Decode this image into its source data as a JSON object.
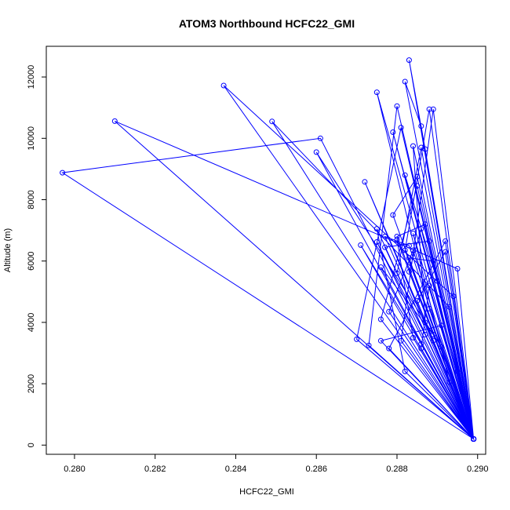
{
  "chart_data": {
    "type": "line",
    "title": "ATOM3 Northbound HCFC22_GMI",
    "xlabel": "HCFC22_GMI",
    "ylabel": "Altitude (m)",
    "xlim": [
      0.2793,
      0.2902
    ],
    "ylim": [
      -300,
      13000
    ],
    "x_ticks": [
      {
        "value": 0.28,
        "label": "0.280"
      },
      {
        "value": 0.282,
        "label": "0.282"
      },
      {
        "value": 0.284,
        "label": "0.284"
      },
      {
        "value": 0.286,
        "label": "0.286"
      },
      {
        "value": 0.288,
        "label": "0.288"
      },
      {
        "value": 0.29,
        "label": "0.290"
      }
    ],
    "y_ticks": [
      {
        "value": 0,
        "label": "0"
      },
      {
        "value": 2000,
        "label": "2000"
      },
      {
        "value": 4000,
        "label": "4000"
      },
      {
        "value": 6000,
        "label": "6000"
      },
      {
        "value": 8000,
        "label": "8000"
      },
      {
        "value": 10000,
        "label": "10000"
      },
      {
        "value": 12000,
        "label": "12000"
      }
    ],
    "grid": false,
    "series": [
      {
        "color": "#0000ff",
        "marker": "open-circle",
        "x": [
          0.2899,
          0.2797,
          0.2861,
          0.2899,
          0.281,
          0.2895,
          0.2899,
          0.2837,
          0.2894,
          0.2899,
          0.2849,
          0.2893,
          0.2899,
          0.286,
          0.2891,
          0.2899,
          0.2872,
          0.2889,
          0.2899,
          0.2875,
          0.2887,
          0.2899,
          0.2871,
          0.2886,
          0.2899,
          0.2875,
          0.2882,
          0.2899,
          0.288,
          0.2884,
          0.2899,
          0.2877,
          0.2883,
          0.2899,
          0.2876,
          0.2885,
          0.2899,
          0.287,
          0.2881,
          0.2899,
          0.2873,
          0.288,
          0.2899,
          0.2882,
          0.2886,
          0.2899,
          0.2877,
          0.2888,
          0.2899,
          0.2883,
          0.2887,
          0.2899,
          0.288,
          0.2886,
          0.2899,
          0.2883,
          0.2889,
          0.2899,
          0.2879,
          0.2885,
          0.2899,
          0.2882,
          0.2888,
          0.2899,
          0.2878,
          0.2884,
          0.2899,
          0.2883,
          0.2886,
          0.2899,
          0.2881,
          0.2889,
          0.2899
        ],
        "y": [
          200,
          8880,
          10000,
          200,
          10560,
          5750,
          200,
          11720,
          4850,
          200,
          10550,
          4500,
          200,
          9550,
          3200,
          200,
          8580,
          3400,
          200,
          6620,
          3600,
          200,
          6520,
          3300,
          200,
          7050,
          2400,
          200,
          6700,
          3500,
          200,
          6800,
          6500,
          200,
          4100,
          8450,
          200,
          3450,
          10350,
          200,
          3250,
          11050,
          200,
          11850,
          10400,
          200,
          6450,
          6650,
          200,
          12550,
          9650,
          200,
          5600,
          9700,
          200,
          6100,
          6000,
          200,
          7500,
          8750,
          200,
          6350,
          10950,
          200,
          4350,
          6350,
          200,
          5650,
          7050,
          200,
          3400,
          10950,
          200
        ]
      },
      {
        "color": "#0000ff",
        "marker": "open-circle",
        "x": [
          0.2899,
          0.2892,
          0.2878,
          0.2899,
          0.2895,
          0.2879,
          0.2899,
          0.2888,
          0.2875,
          0.2899,
          0.289,
          0.2882,
          0.2899,
          0.2887,
          0.288,
          0.2899,
          0.2893,
          0.2884,
          0.2899,
          0.2886,
          0.2888,
          0.2899,
          0.2889,
          0.2876,
          0.2899,
          0.2892,
          0.2885,
          0.2899,
          0.2884,
          0.2887,
          0.2899,
          0.2891,
          0.2876,
          0.2899
        ],
        "y": [
          200,
          6650,
          3150,
          200,
          2400,
          10200,
          200,
          4450,
          11500,
          200,
          5350,
          8800,
          200,
          7200,
          6800,
          200,
          2050,
          6900,
          200,
          3150,
          5200,
          200,
          3600,
          5800,
          200,
          6300,
          4700,
          200,
          9750,
          4000,
          200,
          3900,
          3400,
          200
        ]
      }
    ]
  }
}
